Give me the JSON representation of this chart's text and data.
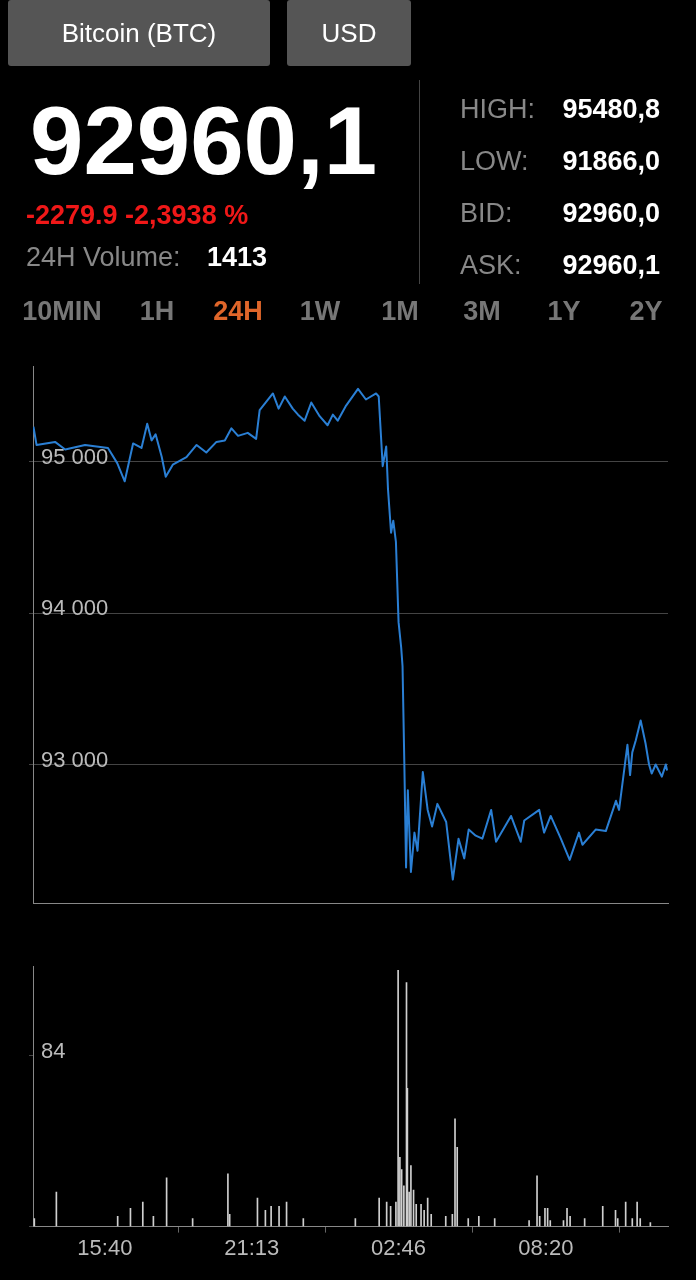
{
  "chart_data": [
    {
      "type": "other",
      "annotations": [
        "Bitcoin (BTC)",
        "USD",
        "92960,1",
        "-2279.9 -2,3938 %",
        "24H Volume:",
        "1413",
        "HIGH:",
        "95480,8",
        "LOW:",
        "91866,0",
        "BID:",
        "92960,0",
        "ASK:",
        "92960,1",
        "10MIN",
        "1H",
        "24H",
        "1W",
        "1M",
        "3M",
        "1Y",
        "2Y"
      ]
    },
    {
      "type": "line",
      "xlim": [
        "--01-01T12:57",
        "--01-02T12:57"
      ],
      "ylim": [
        92080,
        95630
      ],
      "yticks": [
        {
          "value": 93000,
          "label": "93 000"
        },
        {
          "value": 94000,
          "label": "94 000"
        },
        {
          "value": 95000,
          "label": "95 000"
        }
      ],
      "grid": "y",
      "tick_labels": "y",
      "marker": "none",
      "series": [
        {
          "color": "#2a7fd4",
          "x": [
            "--01-01T12:58",
            "--01-01T13:05",
            "--01-01T13:47",
            "--01-01T14:10",
            "--01-01T14:55",
            "--01-01T15:47",
            "--01-01T16:08",
            "--01-01T16:25",
            "--01-01T16:44",
            "--01-01T17:03",
            "--01-01T17:16",
            "--01-01T17:26",
            "--01-01T17:35",
            "--01-01T17:49",
            "--01-01T17:58",
            "--01-01T18:14",
            "--01-01T18:45",
            "--01-01T19:08",
            "--01-01T19:30",
            "--01-01T19:53",
            "--01-01T20:12",
            "--01-01T20:27",
            "--01-01T20:42",
            "--01-01T21:04",
            "--01-01T21:23",
            "--01-01T21:31",
            "--01-01T22:01",
            "--01-01T22:14",
            "--01-01T22:28",
            "--01-01T22:46",
            "--01-01T22:58",
            "--01-01T23:13",
            "--01-01T23:28",
            "--01-01T23:47",
            "--01-02T00:05",
            "--01-02T00:17",
            "--01-02T00:28",
            "--01-02T00:47",
            "--01-02T01:14",
            "--01-02T01:32",
            "--01-02T01:55",
            "--01-02T02:01",
            "--01-02T02:10",
            "--01-02T02:18",
            "--01-02T02:22",
            "--01-02T02:29",
            "--01-02T02:34",
            "--01-02T02:40",
            "--01-02T02:46",
            "--01-02T02:52",
            "--01-02T02:55",
            "--01-02T02:59",
            "--01-02T03:03",
            "--01-02T03:07",
            "--01-02T03:14",
            "--01-02T03:22",
            "--01-02T03:29",
            "--01-02T03:41",
            "--01-02T03:52",
            "--01-02T04:02",
            "--01-02T04:14",
            "--01-02T04:34",
            "--01-02T04:49",
            "--01-02T05:02",
            "--01-02T05:15",
            "--01-02T05:25",
            "--01-02T05:41",
            "--01-02T05:56",
            "--01-02T06:16",
            "--01-02T06:27",
            "--01-02T07:01",
            "--01-02T07:23",
            "--01-02T07:31",
            "--01-02T08:05",
            "--01-02T08:16",
            "--01-02T08:31",
            "--01-02T08:54",
            "--01-02T09:14",
            "--01-02T09:35",
            "--01-02T09:43",
            "--01-02T10:13",
            "--01-02T10:36",
            "--01-02T10:59",
            "--01-02T11:06",
            "--01-02T11:25",
            "--01-02T11:31",
            "--01-02T11:36",
            "--01-02T11:44",
            "--01-02T11:55",
            "--01-02T12:06",
            "--01-02T12:14",
            "--01-02T12:20",
            "--01-02T12:29",
            "--01-02T12:43",
            "--01-02T12:52",
            "--01-02T12:55"
          ],
          "values": [
            95230,
            95110,
            95130,
            95080,
            95110,
            95090,
            94990,
            94870,
            95120,
            95090,
            95250,
            95140,
            95180,
            95030,
            94900,
            94980,
            95030,
            95110,
            95060,
            95130,
            95140,
            95220,
            95170,
            95190,
            95150,
            95340,
            95450,
            95350,
            95430,
            95350,
            95310,
            95270,
            95390,
            95300,
            95240,
            95310,
            95270,
            95370,
            95480,
            95410,
            95450,
            95430,
            94970,
            95100,
            94820,
            94530,
            94610,
            94470,
            93940,
            93770,
            93650,
            93020,
            92320,
            92830,
            92290,
            92550,
            92430,
            92950,
            92700,
            92590,
            92740,
            92620,
            92240,
            92510,
            92380,
            92570,
            92530,
            92510,
            92700,
            92490,
            92660,
            92490,
            92630,
            92700,
            92550,
            92660,
            92510,
            92370,
            92550,
            92470,
            92570,
            92560,
            92760,
            92700,
            93130,
            92930,
            93080,
            93160,
            93290,
            93140,
            93000,
            92940,
            93000,
            92920,
            93000,
            92960
          ]
        }
      ]
    },
    {
      "type": "bar",
      "xlim": [
        "--01-01T12:57",
        "--01-02T12:57"
      ],
      "xticks": [
        {
          "value": "--01-01T15:40",
          "label": "15:40"
        },
        {
          "value": "--01-01T21:13",
          "label": "21:13"
        },
        {
          "value": "--01-02T02:46",
          "label": "02:46"
        },
        {
          "value": "--01-02T08:20",
          "label": "08:20"
        }
      ],
      "ylim": [
        0,
        128
      ],
      "yticks": [
        {
          "value": 0,
          "label": null
        },
        84
      ],
      "grid": false,
      "series": [
        {
          "color": "#d0d0d0",
          "x": [
            "--01-01T13:00",
            "--01-01T13:50",
            "--01-01T16:09",
            "--01-01T16:38",
            "--01-01T17:06",
            "--01-01T17:30",
            "--01-01T18:00",
            "--01-01T18:59",
            "--01-01T20:19",
            "--01-01T20:23",
            "--01-01T21:26",
            "--01-01T21:44",
            "--01-01T21:57",
            "--01-01T22:15",
            "--01-01T22:32",
            "--01-01T23:10",
            "--01-02T01:08",
            "--01-02T02:02",
            "--01-02T02:19",
            "--01-02T02:28",
            "--01-02T02:40",
            "--01-02T02:45",
            "--01-02T02:49",
            "--01-02T02:53",
            "--01-02T02:58",
            "--01-02T03:04",
            "--01-02T03:06",
            "--01-02T03:10",
            "--01-02T03:14",
            "--01-02T03:20",
            "--01-02T03:26",
            "--01-02T03:37",
            "--01-02T03:44",
            "--01-02T03:52",
            "--01-02T04:00",
            "--01-02T04:33",
            "--01-02T04:48",
            "--01-02T04:54",
            "--01-02T04:59",
            "--01-02T05:24",
            "--01-02T05:48",
            "--01-02T06:24",
            "--01-02T07:42",
            "--01-02T08:00",
            "--01-02T08:06",
            "--01-02T08:18",
            "--01-02T08:24",
            "--01-02T08:30",
            "--01-02T09:00",
            "--01-02T09:08",
            "--01-02T09:15",
            "--01-02T09:48",
            "--01-02T10:29",
            "--01-02T10:58",
            "--01-02T11:03",
            "--01-02T11:21",
            "--01-02T11:36",
            "--01-02T11:47",
            "--01-02T11:54",
            "--01-02T12:17"
          ],
          "values": [
            4,
            17,
            5,
            9,
            12,
            5,
            24,
            4,
            26,
            6,
            14,
            8,
            10,
            10,
            12,
            4,
            4,
            14,
            12,
            10,
            12,
            126,
            34,
            28,
            20,
            120,
            68,
            17,
            30,
            18,
            11,
            11,
            8,
            14,
            6,
            5,
            6,
            53,
            39,
            4,
            5,
            4,
            3,
            25,
            5,
            9,
            9,
            3,
            3,
            9,
            5,
            4,
            10,
            8,
            4,
            12,
            4,
            12,
            4,
            2
          ]
        }
      ]
    }
  ]
}
